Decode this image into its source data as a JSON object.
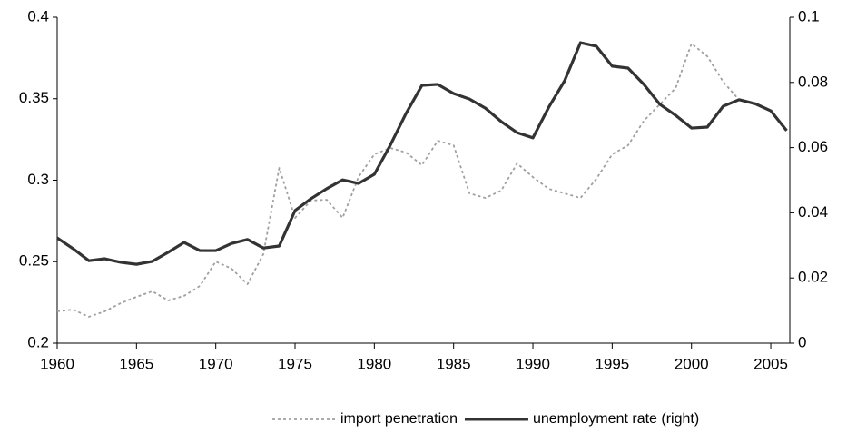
{
  "chart_data": {
    "type": "line",
    "x": [
      1960,
      1961,
      1962,
      1963,
      1964,
      1965,
      1966,
      1967,
      1968,
      1969,
      1970,
      1971,
      1972,
      1973,
      1974,
      1975,
      1976,
      1977,
      1978,
      1979,
      1980,
      1981,
      1982,
      1983,
      1984,
      1985,
      1986,
      1987,
      1988,
      1989,
      1990,
      1991,
      1992,
      1993,
      1994,
      1995,
      1996,
      1997,
      1998,
      1999,
      2000,
      2001,
      2002,
      2003,
      2004,
      2005,
      2006
    ],
    "series": [
      {
        "name": "import penetration",
        "color": "#a0a0a0",
        "dash": true,
        "values": [
          0.2195,
          0.2206,
          0.2162,
          0.2195,
          0.2245,
          0.2284,
          0.2318,
          0.2262,
          0.229,
          0.2351,
          0.2501,
          0.2457,
          0.2362,
          0.2546,
          0.3075,
          0.2769,
          0.2875,
          0.288,
          0.2769,
          0.3019,
          0.3159,
          0.3198,
          0.317,
          0.3092,
          0.3242,
          0.3214,
          0.2919,
          0.2891,
          0.2936,
          0.3103,
          0.3019,
          0.2947,
          0.2919,
          0.2891,
          0.3008,
          0.3159,
          0.3214,
          0.3365,
          0.3465,
          0.3565,
          0.3838,
          0.376,
          0.3604,
          0.3493,
          null,
          null,
          null
        ]
      },
      {
        "name": "unemployment rate (right)",
        "color": "#333333",
        "axis": "y2",
        "values": [
          0.0323,
          0.029,
          0.0253,
          0.0259,
          0.0248,
          0.0242,
          0.0251,
          0.0279,
          0.0309,
          0.0284,
          0.0284,
          0.0306,
          0.0318,
          0.0292,
          0.0298,
          0.0407,
          0.0443,
          0.0474,
          0.0501,
          0.049,
          0.0518,
          0.0607,
          0.0705,
          0.0791,
          0.0794,
          0.0766,
          0.0749,
          0.0721,
          0.068,
          0.0646,
          0.063,
          0.0724,
          0.0805,
          0.0922,
          0.0911,
          0.085,
          0.0844,
          0.0794,
          0.0733,
          0.0699,
          0.066,
          0.0663,
          0.0727,
          0.0747,
          0.0735,
          0.0713,
          0.0652
        ]
      }
    ],
    "xlim": [
      1960,
      2006.2
    ],
    "xticks": [
      1960,
      1965,
      1970,
      1975,
      1980,
      1985,
      1990,
      1995,
      2000,
      2005
    ],
    "ylim": [
      0.2,
      0.4
    ],
    "yticks": [
      0.2,
      0.25,
      0.3,
      0.35,
      0.4
    ],
    "y2lim": [
      0,
      0.1
    ],
    "y2ticks": [
      0,
      0.02,
      0.04,
      0.06,
      0.08,
      0.1
    ],
    "legend": "bottom"
  }
}
